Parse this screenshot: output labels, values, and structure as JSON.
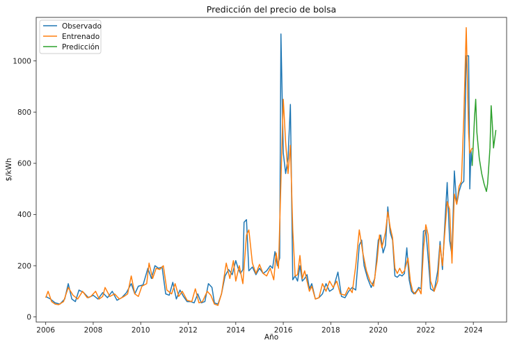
{
  "chart_data": {
    "type": "line",
    "title": "Predicción del precio de bolsa",
    "xlabel": "Año",
    "ylabel": "$/kWh",
    "xlim": [
      2005.6,
      2025.4
    ],
    "ylim": [
      -20,
      1170
    ],
    "x_ticks": [
      "2006",
      "2008",
      "2010",
      "2012",
      "2014",
      "2016",
      "2018",
      "2020",
      "2022",
      "2024"
    ],
    "y_ticks": [
      "0",
      "200",
      "400",
      "600",
      "800",
      "1000"
    ],
    "grid": false,
    "legend_position": "top-left",
    "series": [
      {
        "name": "Observado",
        "color": "#1f77b4",
        "points": [
          [
            2006.0,
            80
          ],
          [
            2006.2,
            70
          ],
          [
            2006.4,
            55
          ],
          [
            2006.6,
            50
          ],
          [
            2006.8,
            70
          ],
          [
            2006.95,
            130
          ],
          [
            2007.1,
            70
          ],
          [
            2007.25,
            60
          ],
          [
            2007.4,
            105
          ],
          [
            2007.6,
            95
          ],
          [
            2007.8,
            75
          ],
          [
            2008.0,
            85
          ],
          [
            2008.2,
            70
          ],
          [
            2008.4,
            95
          ],
          [
            2008.6,
            75
          ],
          [
            2008.8,
            100
          ],
          [
            2009.0,
            65
          ],
          [
            2009.2,
            75
          ],
          [
            2009.4,
            95
          ],
          [
            2009.6,
            130
          ],
          [
            2009.75,
            90
          ],
          [
            2009.9,
            120
          ],
          [
            2010.1,
            125
          ],
          [
            2010.3,
            190
          ],
          [
            2010.45,
            150
          ],
          [
            2010.6,
            200
          ],
          [
            2010.75,
            190
          ],
          [
            2010.9,
            195
          ],
          [
            2011.05,
            90
          ],
          [
            2011.2,
            85
          ],
          [
            2011.35,
            135
          ],
          [
            2011.5,
            70
          ],
          [
            2011.65,
            105
          ],
          [
            2011.8,
            80
          ],
          [
            2011.95,
            60
          ],
          [
            2012.1,
            60
          ],
          [
            2012.25,
            55
          ],
          [
            2012.4,
            90
          ],
          [
            2012.55,
            55
          ],
          [
            2012.7,
            60
          ],
          [
            2012.85,
            130
          ],
          [
            2013.0,
            115
          ],
          [
            2013.1,
            55
          ],
          [
            2013.25,
            50
          ],
          [
            2013.4,
            90
          ],
          [
            2013.55,
            160
          ],
          [
            2013.7,
            185
          ],
          [
            2013.85,
            165
          ],
          [
            2014.0,
            220
          ],
          [
            2014.1,
            190
          ],
          [
            2014.2,
            170
          ],
          [
            2014.3,
            185
          ],
          [
            2014.35,
            370
          ],
          [
            2014.45,
            380
          ],
          [
            2014.55,
            180
          ],
          [
            2014.7,
            195
          ],
          [
            2014.85,
            165
          ],
          [
            2015.0,
            190
          ],
          [
            2015.15,
            170
          ],
          [
            2015.3,
            180
          ],
          [
            2015.45,
            200
          ],
          [
            2015.55,
            190
          ],
          [
            2015.65,
            255
          ],
          [
            2015.75,
            200
          ],
          [
            2015.85,
            230
          ],
          [
            2015.9,
            1105
          ],
          [
            2016.0,
            640
          ],
          [
            2016.1,
            560
          ],
          [
            2016.2,
            620
          ],
          [
            2016.3,
            830
          ],
          [
            2016.4,
            145
          ],
          [
            2016.5,
            160
          ],
          [
            2016.6,
            140
          ],
          [
            2016.7,
            200
          ],
          [
            2016.8,
            140
          ],
          [
            2016.9,
            150
          ],
          [
            2017.0,
            165
          ],
          [
            2017.1,
            110
          ],
          [
            2017.2,
            130
          ],
          [
            2017.35,
            70
          ],
          [
            2017.5,
            75
          ],
          [
            2017.65,
            90
          ],
          [
            2017.8,
            130
          ],
          [
            2017.95,
            100
          ],
          [
            2018.1,
            110
          ],
          [
            2018.3,
            175
          ],
          [
            2018.45,
            80
          ],
          [
            2018.6,
            75
          ],
          [
            2018.75,
            100
          ],
          [
            2018.9,
            115
          ],
          [
            2019.05,
            105
          ],
          [
            2019.2,
            280
          ],
          [
            2019.3,
            300
          ],
          [
            2019.4,
            200
          ],
          [
            2019.55,
            150
          ],
          [
            2019.7,
            115
          ],
          [
            2019.85,
            150
          ],
          [
            2020.0,
            300
          ],
          [
            2020.1,
            320
          ],
          [
            2020.2,
            250
          ],
          [
            2020.3,
            280
          ],
          [
            2020.4,
            430
          ],
          [
            2020.5,
            330
          ],
          [
            2020.6,
            300
          ],
          [
            2020.7,
            160
          ],
          [
            2020.8,
            155
          ],
          [
            2020.9,
            165
          ],
          [
            2021.0,
            160
          ],
          [
            2021.1,
            170
          ],
          [
            2021.2,
            270
          ],
          [
            2021.3,
            145
          ],
          [
            2021.4,
            100
          ],
          [
            2021.5,
            90
          ],
          [
            2021.6,
            100
          ],
          [
            2021.7,
            115
          ],
          [
            2021.8,
            110
          ],
          [
            2021.9,
            335
          ],
          [
            2022.0,
            340
          ],
          [
            2022.1,
            230
          ],
          [
            2022.2,
            110
          ],
          [
            2022.35,
            100
          ],
          [
            2022.5,
            180
          ],
          [
            2022.6,
            295
          ],
          [
            2022.7,
            185
          ],
          [
            2022.8,
            360
          ],
          [
            2022.9,
            525
          ],
          [
            2023.0,
            300
          ],
          [
            2023.1,
            240
          ],
          [
            2023.2,
            570
          ],
          [
            2023.3,
            440
          ],
          [
            2023.4,
            490
          ],
          [
            2023.5,
            520
          ],
          [
            2023.6,
            530
          ],
          [
            2023.7,
            1020
          ],
          [
            2023.8,
            1020
          ],
          [
            2023.85,
            500
          ],
          [
            2023.9,
            650
          ],
          [
            2023.95,
            590
          ]
        ]
      },
      {
        "name": "Entrenado",
        "color": "#ff7f0e",
        "points": [
          [
            2006.0,
            75
          ],
          [
            2006.1,
            100
          ],
          [
            2006.25,
            60
          ],
          [
            2006.4,
            50
          ],
          [
            2006.55,
            48
          ],
          [
            2006.75,
            60
          ],
          [
            2006.95,
            115
          ],
          [
            2007.15,
            85
          ],
          [
            2007.35,
            70
          ],
          [
            2007.55,
            100
          ],
          [
            2007.75,
            75
          ],
          [
            2007.9,
            80
          ],
          [
            2008.1,
            100
          ],
          [
            2008.25,
            70
          ],
          [
            2008.4,
            80
          ],
          [
            2008.5,
            115
          ],
          [
            2008.7,
            80
          ],
          [
            2008.9,
            90
          ],
          [
            2009.1,
            70
          ],
          [
            2009.3,
            80
          ],
          [
            2009.45,
            90
          ],
          [
            2009.6,
            160
          ],
          [
            2009.75,
            90
          ],
          [
            2009.9,
            80
          ],
          [
            2010.05,
            120
          ],
          [
            2010.25,
            130
          ],
          [
            2010.35,
            210
          ],
          [
            2010.5,
            150
          ],
          [
            2010.65,
            190
          ],
          [
            2010.8,
            185
          ],
          [
            2010.95,
            200
          ],
          [
            2011.1,
            105
          ],
          [
            2011.3,
            90
          ],
          [
            2011.45,
            130
          ],
          [
            2011.6,
            80
          ],
          [
            2011.75,
            100
          ],
          [
            2011.95,
            65
          ],
          [
            2012.15,
            60
          ],
          [
            2012.3,
            110
          ],
          [
            2012.45,
            55
          ],
          [
            2012.6,
            60
          ],
          [
            2012.8,
            100
          ],
          [
            2012.95,
            85
          ],
          [
            2013.1,
            50
          ],
          [
            2013.25,
            45
          ],
          [
            2013.4,
            90
          ],
          [
            2013.6,
            210
          ],
          [
            2013.75,
            150
          ],
          [
            2013.9,
            220
          ],
          [
            2014.0,
            140
          ],
          [
            2014.15,
            200
          ],
          [
            2014.3,
            130
          ],
          [
            2014.45,
            320
          ],
          [
            2014.55,
            340
          ],
          [
            2014.7,
            210
          ],
          [
            2014.85,
            170
          ],
          [
            2015.0,
            205
          ],
          [
            2015.15,
            170
          ],
          [
            2015.3,
            160
          ],
          [
            2015.45,
            190
          ],
          [
            2015.6,
            145
          ],
          [
            2015.7,
            250
          ],
          [
            2015.8,
            190
          ],
          [
            2015.9,
            530
          ],
          [
            2016.0,
            850
          ],
          [
            2016.1,
            680
          ],
          [
            2016.2,
            560
          ],
          [
            2016.3,
            670
          ],
          [
            2016.4,
            340
          ],
          [
            2016.5,
            160
          ],
          [
            2016.6,
            165
          ],
          [
            2016.7,
            240
          ],
          [
            2016.8,
            150
          ],
          [
            2016.9,
            180
          ],
          [
            2017.0,
            140
          ],
          [
            2017.1,
            100
          ],
          [
            2017.2,
            120
          ],
          [
            2017.35,
            70
          ],
          [
            2017.5,
            75
          ],
          [
            2017.65,
            130
          ],
          [
            2017.8,
            100
          ],
          [
            2017.95,
            140
          ],
          [
            2018.1,
            115
          ],
          [
            2018.25,
            140
          ],
          [
            2018.4,
            90
          ],
          [
            2018.6,
            85
          ],
          [
            2018.75,
            115
          ],
          [
            2018.9,
            95
          ],
          [
            2019.05,
            200
          ],
          [
            2019.2,
            340
          ],
          [
            2019.35,
            250
          ],
          [
            2019.5,
            180
          ],
          [
            2019.65,
            140
          ],
          [
            2019.8,
            120
          ],
          [
            2019.95,
            220
          ],
          [
            2020.05,
            320
          ],
          [
            2020.15,
            270
          ],
          [
            2020.3,
            330
          ],
          [
            2020.4,
            410
          ],
          [
            2020.5,
            350
          ],
          [
            2020.6,
            310
          ],
          [
            2020.7,
            190
          ],
          [
            2020.8,
            170
          ],
          [
            2020.9,
            190
          ],
          [
            2021.0,
            170
          ],
          [
            2021.1,
            180
          ],
          [
            2021.25,
            230
          ],
          [
            2021.35,
            140
          ],
          [
            2021.45,
            100
          ],
          [
            2021.55,
            90
          ],
          [
            2021.7,
            110
          ],
          [
            2021.8,
            90
          ],
          [
            2021.9,
            260
          ],
          [
            2022.0,
            360
          ],
          [
            2022.1,
            320
          ],
          [
            2022.2,
            140
          ],
          [
            2022.35,
            100
          ],
          [
            2022.5,
            140
          ],
          [
            2022.6,
            280
          ],
          [
            2022.7,
            200
          ],
          [
            2022.8,
            330
          ],
          [
            2022.9,
            450
          ],
          [
            2023.0,
            420
          ],
          [
            2023.1,
            210
          ],
          [
            2023.2,
            480
          ],
          [
            2023.3,
            440
          ],
          [
            2023.4,
            510
          ],
          [
            2023.5,
            530
          ],
          [
            2023.6,
            780
          ],
          [
            2023.7,
            1130
          ],
          [
            2023.8,
            720
          ],
          [
            2023.85,
            640
          ],
          [
            2023.9,
            650
          ],
          [
            2023.95,
            660
          ]
        ]
      },
      {
        "name": "Predicción",
        "color": "#2ca02c",
        "points": [
          [
            2023.95,
            590
          ],
          [
            2024.0,
            680
          ],
          [
            2024.05,
            780
          ],
          [
            2024.1,
            850
          ],
          [
            2024.15,
            720
          ],
          [
            2024.25,
            620
          ],
          [
            2024.35,
            560
          ],
          [
            2024.45,
            520
          ],
          [
            2024.55,
            490
          ],
          [
            2024.6,
            520
          ],
          [
            2024.7,
            660
          ],
          [
            2024.75,
            825
          ],
          [
            2024.8,
            750
          ],
          [
            2024.85,
            660
          ],
          [
            2024.95,
            730
          ]
        ]
      }
    ]
  }
}
